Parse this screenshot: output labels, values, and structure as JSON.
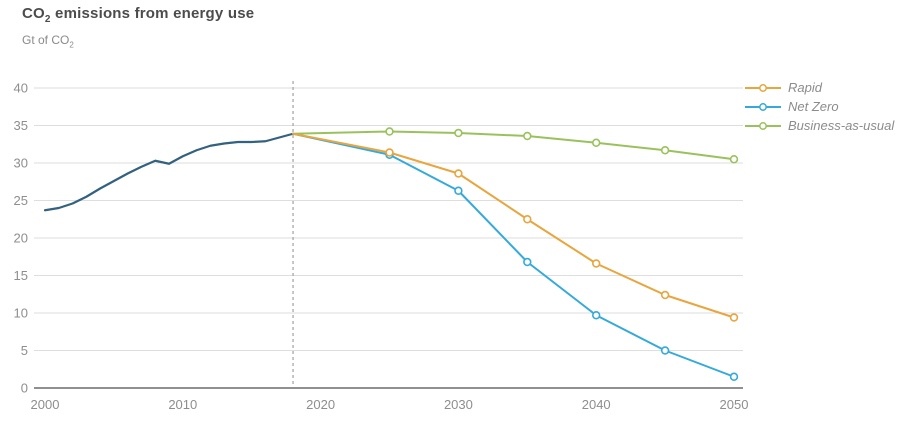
{
  "header": {
    "title_pre": "CO",
    "title_sub": "2",
    "title_post": " emissions from energy use",
    "unit_pre": "Gt of CO",
    "unit_sub": "2"
  },
  "chart_data": {
    "type": "line",
    "title": "CO2 emissions from energy use",
    "ylabel": "Gt of CO2",
    "xlabel": "",
    "xlim": [
      2000,
      2050
    ],
    "ylim": [
      0,
      40
    ],
    "x_ticks": [
      2000,
      2010,
      2020,
      2030,
      2040,
      2050
    ],
    "y_ticks": [
      0,
      5,
      10,
      15,
      20,
      25,
      30,
      35,
      40
    ],
    "grid": "horizontal",
    "legend_position": "top-right",
    "forecast_divider_year": 2018,
    "history": {
      "color": "#336180",
      "x": [
        2000,
        2001,
        2002,
        2003,
        2004,
        2005,
        2006,
        2007,
        2008,
        2009,
        2010,
        2011,
        2012,
        2013,
        2014,
        2015,
        2016,
        2017,
        2018
      ],
      "values": [
        23.7,
        24.0,
        24.6,
        25.5,
        26.6,
        27.6,
        28.6,
        29.5,
        30.3,
        29.9,
        30.9,
        31.7,
        32.3,
        32.6,
        32.8,
        32.8,
        32.9,
        33.4,
        33.9
      ]
    },
    "series": [
      {
        "name": "Rapid",
        "color": "#e9a53e",
        "marker": "open-circle",
        "x": [
          2018,
          2025,
          2030,
          2035,
          2040,
          2045,
          2050
        ],
        "values": [
          33.9,
          31.4,
          28.6,
          22.5,
          16.6,
          12.4,
          9.4
        ]
      },
      {
        "name": "Net Zero",
        "color": "#35aada",
        "marker": "open-circle",
        "x": [
          2018,
          2025,
          2030,
          2035,
          2040,
          2045,
          2050
        ],
        "values": [
          33.9,
          31.1,
          26.3,
          16.8,
          9.7,
          5.0,
          1.5
        ]
      },
      {
        "name": "Business-as-usual",
        "color": "#9ac25c",
        "marker": "open-circle",
        "x": [
          2018,
          2025,
          2030,
          2035,
          2040,
          2045,
          2050
        ],
        "values": [
          33.9,
          34.2,
          34.0,
          33.6,
          32.7,
          31.7,
          30.5
        ]
      }
    ],
    "colors": {
      "grid": "#dedede",
      "axis": "#909090",
      "tick_label": "#8e8e8e",
      "divider": "#a8a8a8"
    }
  }
}
